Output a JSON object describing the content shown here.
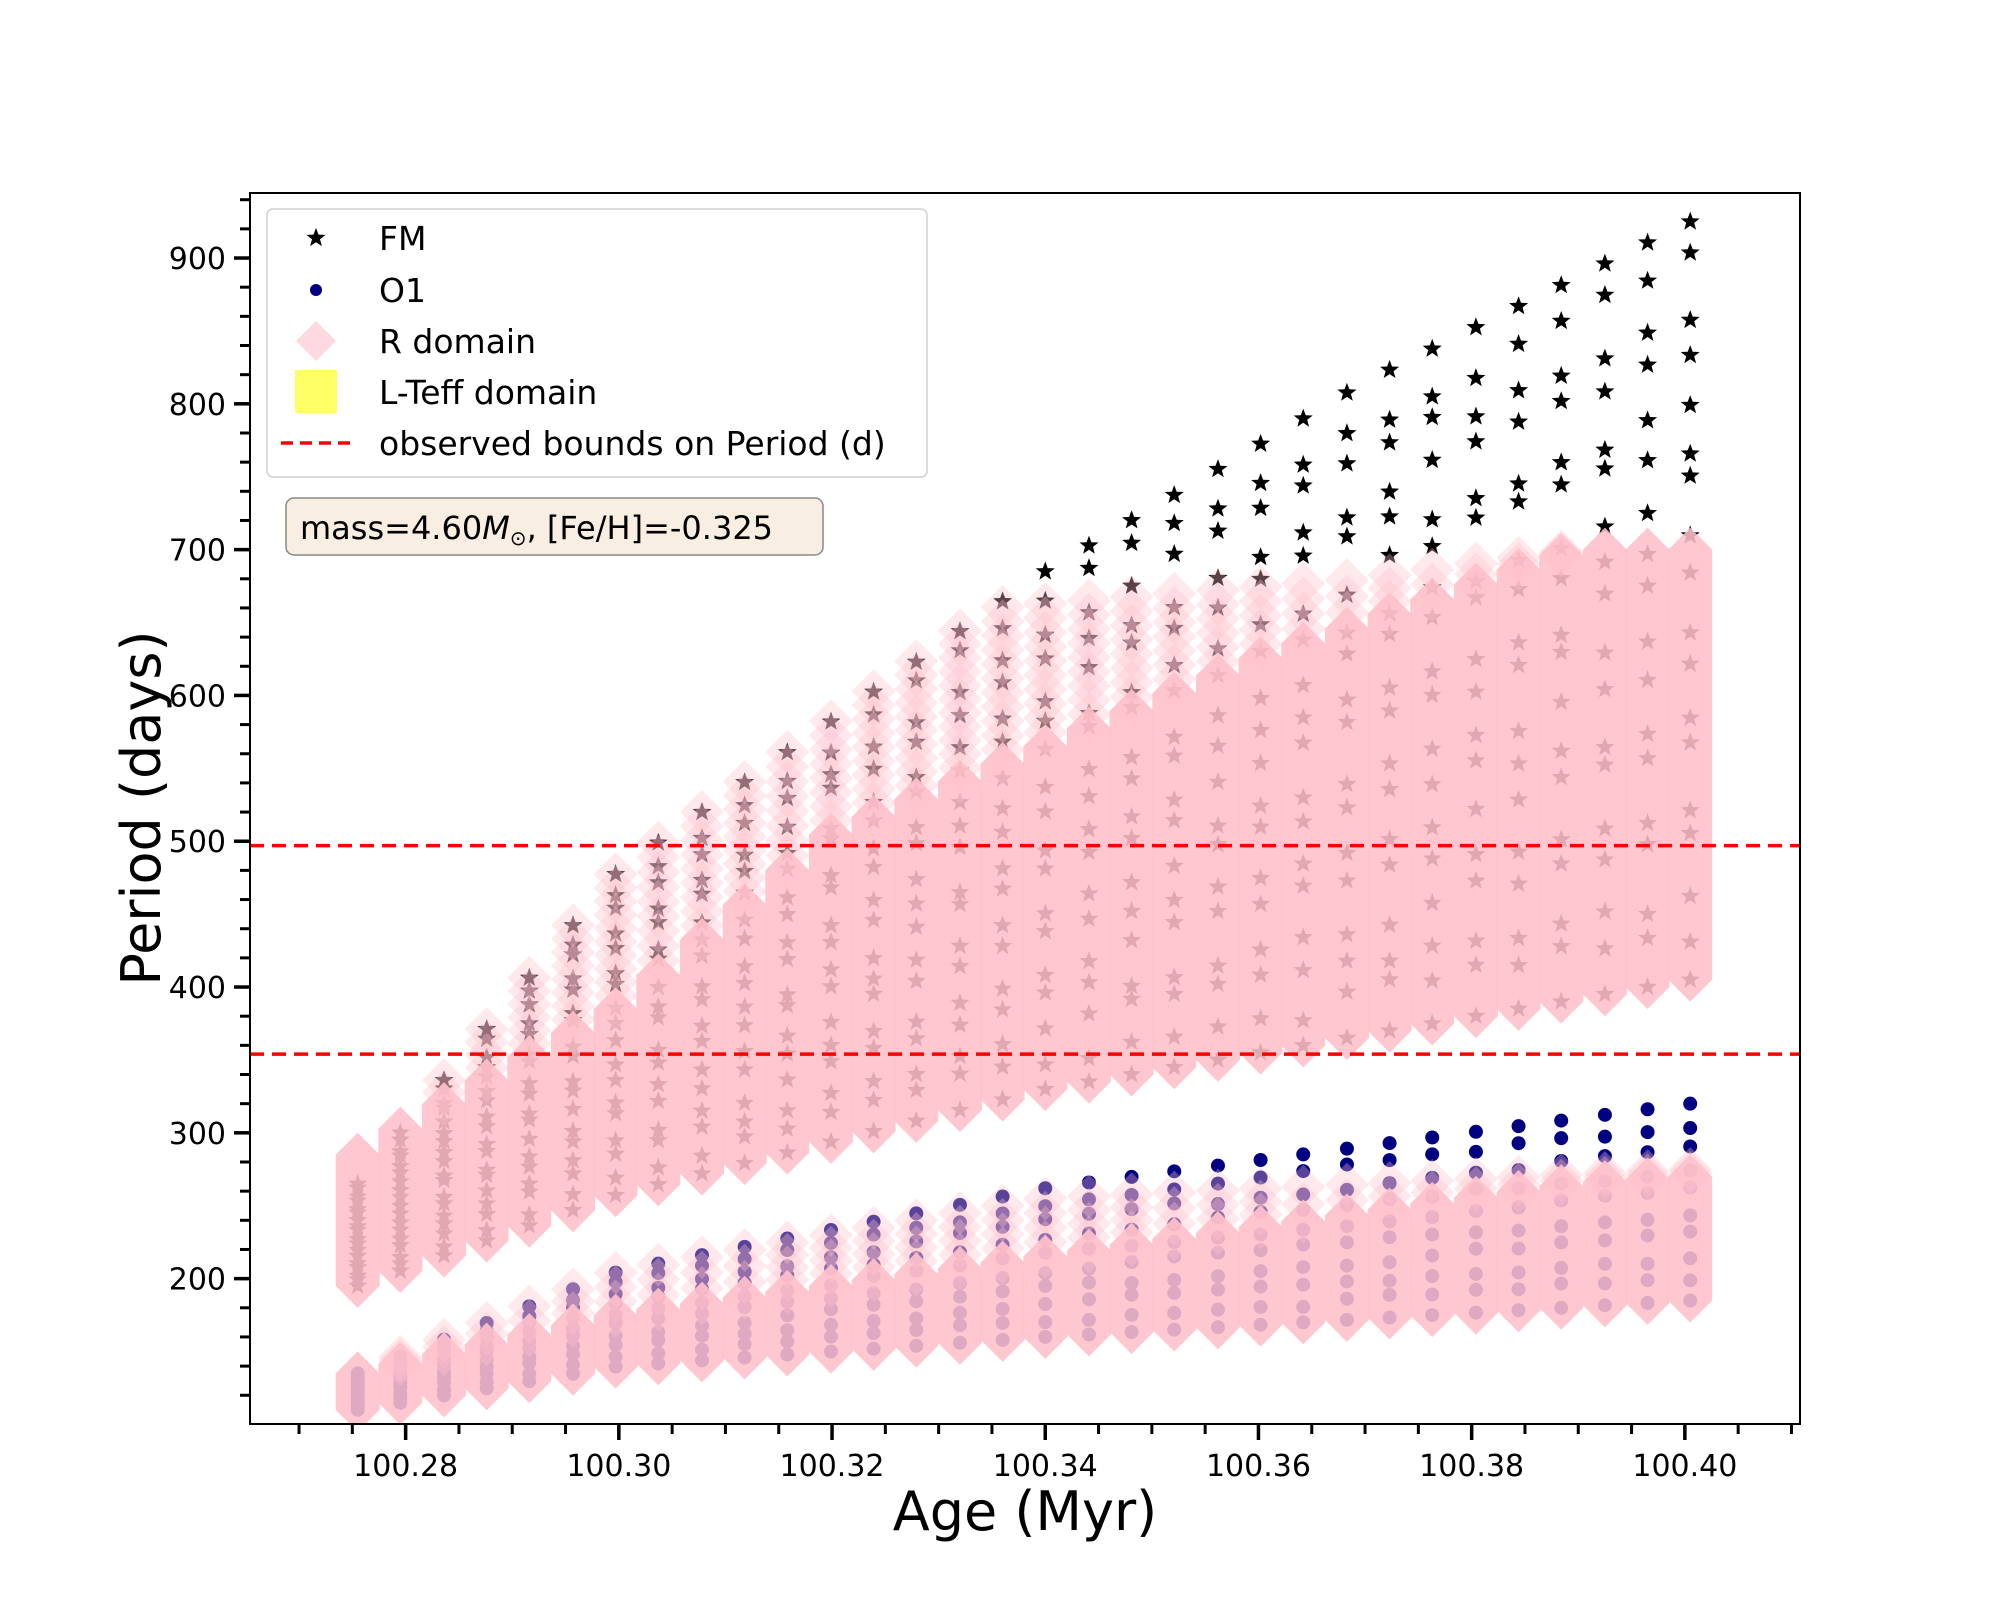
{
  "chart_data": {
    "type": "scatter",
    "title": "",
    "xlabel": "Age (Myr)",
    "ylabel": "Period (days)",
    "xlim": [
      100.2654,
      100.4108
    ],
    "ylim": [
      100.3,
      944.6
    ],
    "xticks": [
      100.28,
      100.3,
      100.32,
      100.34,
      100.36,
      100.38,
      100.4
    ],
    "xtick_labels": [
      "100.28",
      "100.30",
      "100.32",
      "100.34",
      "100.36",
      "100.38",
      "100.40"
    ],
    "x_minor_step": 0.005,
    "yticks": [
      200,
      300,
      400,
      500,
      600,
      700,
      800,
      900
    ],
    "ytick_labels": [
      "200",
      "300",
      "400",
      "500",
      "600",
      "700",
      "800",
      "900"
    ],
    "y_minor_step": 20,
    "grid": false,
    "legend_position": "top-left",
    "legend": [
      {
        "label": "FM",
        "marker": "star",
        "color": "#000000"
      },
      {
        "label": "O1",
        "marker": "circle",
        "color": "#000080"
      },
      {
        "label": "R domain",
        "marker": "diamond",
        "color": "#FFC0CB"
      },
      {
        "label": "L-Teff domain",
        "marker": "square",
        "color": "#FFFF66"
      },
      {
        "label": "observed bounds on Period (d)",
        "marker": "dashed-line",
        "color": "#FF0000"
      }
    ],
    "annotation": {
      "prefix": "mass=4.60",
      "msun": "M",
      "sun_symbol": "⊙",
      "suffix": ", [Fe/H]=-0.325"
    },
    "observed_bounds": [
      354,
      497
    ],
    "column_ages": [
      100.2755,
      100.2795,
      100.2836,
      100.2876,
      100.2916,
      100.2957,
      100.2997,
      100.3037,
      100.3078,
      100.3118,
      100.3158,
      100.3199,
      100.3239,
      100.3279,
      100.332,
      100.336,
      100.34,
      100.3441,
      100.3481,
      100.3521,
      100.3562,
      100.3602,
      100.3642,
      100.3683,
      100.3723,
      100.3763,
      100.3804,
      100.3844,
      100.3884,
      100.3925,
      100.3965,
      100.4005
    ],
    "series": [
      {
        "name": "FM",
        "period_max": [
          [
            100.2755,
            265
          ],
          [
            100.3,
            480
          ],
          [
            100.34,
            685
          ],
          [
            100.37,
            815
          ],
          [
            100.4005,
            925
          ]
        ],
        "period_min": [
          [
            100.2755,
            195
          ],
          [
            100.3,
            258
          ],
          [
            100.34,
            330
          ],
          [
            100.4005,
            405
          ]
        ],
        "r_domain_solid_top": [
          [
            100.2755,
            285
          ],
          [
            100.28,
            305
          ],
          [
            100.3,
            386
          ],
          [
            100.32,
            505
          ],
          [
            100.34,
            565
          ],
          [
            100.36,
            625
          ],
          [
            100.39,
            700
          ],
          [
            100.4005,
            700
          ]
        ],
        "r_domain_max": [
          [
            100.2755,
            265
          ],
          [
            100.3,
            480
          ],
          [
            100.335,
            660
          ],
          [
            100.37,
            680
          ],
          [
            100.39,
            700
          ],
          [
            100.4005,
            700
          ]
        ]
      },
      {
        "name": "O1",
        "period_max": [
          [
            100.2755,
            135
          ],
          [
            100.3,
            205
          ],
          [
            100.34,
            262
          ],
          [
            100.4005,
            320
          ]
        ],
        "period_min": [
          [
            100.2755,
            110
          ],
          [
            100.3,
            140
          ],
          [
            100.34,
            160
          ],
          [
            100.4005,
            185
          ]
        ],
        "r_domain_solid_top": [
          [
            100.2755,
            135
          ],
          [
            100.3,
            175
          ],
          [
            100.34,
            215
          ],
          [
            100.39,
            265
          ],
          [
            100.4005,
            270
          ]
        ],
        "r_domain_max": [
          [
            100.2755,
            135
          ],
          [
            100.3,
            205
          ],
          [
            100.34,
            255
          ],
          [
            100.4005,
            275
          ]
        ]
      }
    ]
  }
}
